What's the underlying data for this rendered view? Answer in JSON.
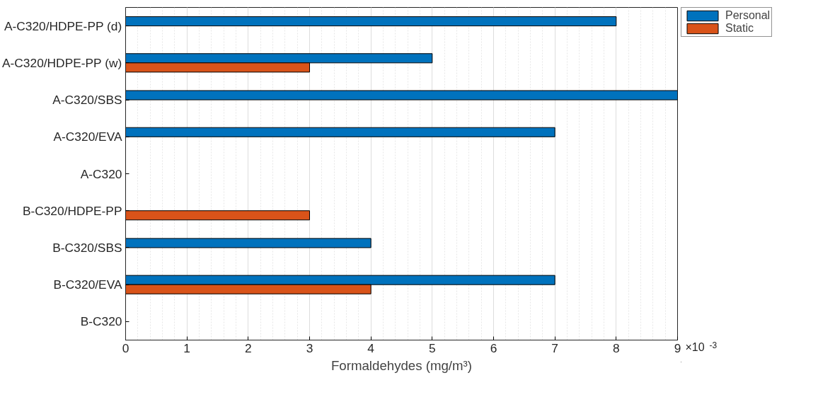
{
  "chart_data": {
    "type": "bar",
    "orientation": "horizontal",
    "xlabel": "Formaldehydes (mg/m³)",
    "categories": [
      "A-C320/HDPE-PP (d)",
      "A-C320/HDPE-PP (w)",
      "A-C320/SBS",
      "A-C320/EVA",
      "A-C320",
      "B-C320/HDPE-PP",
      "B-C320/SBS",
      "B-C320/EVA",
      "B-C320"
    ],
    "series": [
      {
        "name": "Personal",
        "color": "#0072bd",
        "values": [
          8,
          5,
          9,
          7,
          0,
          0,
          4,
          7,
          0
        ]
      },
      {
        "name": "Static",
        "color": "#d95319",
        "values": [
          0,
          3,
          0,
          0,
          0,
          3,
          0,
          4,
          0
        ]
      }
    ],
    "xlim": [
      0,
      9
    ],
    "xticks": [
      0,
      1,
      2,
      3,
      4,
      5,
      6,
      7,
      8,
      9
    ],
    "annotations": [
      "×10$^{-3}$"
    ],
    "grid": "x",
    "legend": "top right"
  }
}
